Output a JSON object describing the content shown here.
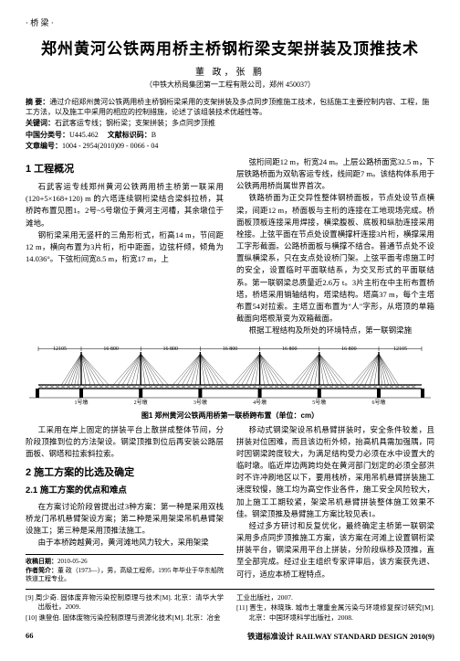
{
  "corner_label": "· 桥  梁 ·",
  "title": "郑州黄河公铁两用桥主桥钢桁梁支架拼装及顶推技术",
  "authors": "董  政，张  鹏",
  "affiliation": "（中铁大桥局集团第一工程有限公司，郑州  450037）",
  "abstract_label": "摘  要：",
  "abstract_text": "通过介绍郑州黄河公铁两用桥主桥钢桁梁采用的支架拼装及多点同步顶推施工技术，包括施工主要控制内容、工程，施工方法，以及施工中采用的相应的控制措施，论述了该组装技术优越性等。",
  "keywords_label": "关键词：",
  "keywords_text": "石武客运专线；钢桁梁；支架拼装；多点同步顶推",
  "clc_label": "中国分类号：",
  "clc_value": "U445.462",
  "doccode_label": "文献标识码：",
  "doccode_value": "B",
  "articleid_label": "文章编号：",
  "articleid_value": "1004 - 2954(2010)09 - 0066 - 04",
  "sec1_title": "1  工程概况",
  "sec1_p1": "石武客运专线郑州黄河公铁两用桥主桥第一联采用(120+5×168+120) m 的六塔连续钢桁梁结合梁斜拉桥，其桥跨布置见图1。2号~5号墩位于黄河主河槽，其余墩位于滩地。",
  "sec1_p2": "钢桁梁采用无竖杆的三角形桁式，桁高14 m，节间距12 m，横向布置为3片桁，桁中距面，边弦杆倾，倾角为14.036°。下弦桁间宽8.5 m，桁宽17 m，上",
  "sec2_title": "2  施工方案的比选及确定",
  "sec21_title": "2.1  施工方案的优点和难点",
  "left_p_after_fig": "工采用在岸上固定的拼装平台上散拼成整体节间，分阶段顶推到位的方法架设。钢梁顶推到位后再安装公路层面板、钢塔和拉索斜拉索。",
  "sec21_p1": "在方案讨论阶段曾提出过3种方案：第一种是采用双栈桥龙门吊机悬臂架设方案；第二种是采用架梁吊机悬臂架设施工；第三种是采用顶推法施工。",
  "sec21_p2": "由于本桥跨越黄河，黄河滩地风力较大，采用架梁",
  "right_p1": "弦桁间距12 m，桁宽24 m。上层公路桥面宽32.5 m，下层铁路桥面为双轨客运专线，线间距7 m。该结构体系用于公铁两用桥尚属世界首次。",
  "right_p2": "铁路桥面为正交异性整体钢桥面板，节点处设节点横梁，间距12 m，桥面板与主桁的连接在工地现场完成。桥面板顶板连接采用焊接，横梁腹板、底板和纵肋连接采用栓接。上弦平面在节点处设置横撑杆连接3片桁，横撑采用工字形截面。公路桥面板与横撑不结合。普通节点处不设置纵横梁系，只在支点处设桥门架。上弦平面考虑施工时的安全，设置临时平面联结系，为交叉形式的平面联结系。第一联钢梁总质量近2.6万 t。3片主桁在中主桁布置桥塔，桥塔采用销轴结构，塔梁结构。塔高37 m，每个主塔布置54对拉索。主塔立面布置为\"人\"字形，从塔顶的单箱截面向塔根渐变为双箱截面。",
  "right_p3": "根据工程结构及所处的环境特点，第一联钢梁施",
  "right_p4": "移动式钢梁架设吊机悬臂拼装时，安全条件较差，且拼装对位困难，而且该边桁外倾，抬高机具需加强隅，同时因钢梁跨度较大，为满足结构受力必须在水中设置大的临时墩。临近岸边两跨均处在黄河部门划定的必须全部洪时不许冲刷地区以下，要用栈桥，采用吊机悬臂拼装施工速度较慢，施工均为高空作业各件，施工安全风险较大，加上施工工期较紧，架梁吊机悬臂拼装整体施工效果不佳。钢梁顶推及悬臂施工方案比较见表1。",
  "right_p5": "经过多方研讨和反复优化，最终确定主桥第一联钢梁采用多点同步顶推施工方案，该方案在河滩上设置钢桁梁拼装平台，钢梁采用平台上拼装，分阶段纵移及顶推，直至全部完成。经过业主组织专家评审后，该方案获先进、可行，适应本桥工程特点。",
  "fig_caption": "图1  郑州黄河公铁两用桥第一联桥跨布置（单位：cm）",
  "bridge": {
    "spans_cm": [
      12105,
      16800,
      16800,
      16800,
      16800,
      16800,
      12105
    ],
    "pier_labels": [
      "1号墩",
      "2号墩",
      "3号墩",
      "4号墩",
      "5号墩",
      "6号墩"
    ],
    "tower_color": "#000000",
    "deck_color": "#000000",
    "cable_color": "#000000",
    "dim_font_size": 6
  },
  "footnote_date_label": "收稿日期：",
  "footnote_date": "2010-05-26",
  "footnote_author_label": "作者简介：",
  "footnote_author": "董  政（1973—），男，高级工程师，1995 年毕业于华东船院铁道工程专业。",
  "refs_left": [
    {
      "n": "[9]",
      "t": "周少奇. 固体废弃物污染控制原理与技术[M]. 北京：清华大学出版社，2009."
    },
    {
      "n": "[10]",
      "t": "谯登伯. 固体废物污染控制原理与资源化技术[M]. 北京：冶金"
    }
  ],
  "refs_right": [
    {
      "n": "",
      "t": "工业出版社，2007."
    },
    {
      "n": "[11]",
      "t": "晋生，林晓珠. 城市土壤重金属污染与环境修复探讨研究[M]. 北京：中国环境科学出版社，2008."
    }
  ],
  "page_number": "66",
  "journal_footer": "铁道标准设计  RAILWAY STANDARD DESIGN  2010(9)"
}
